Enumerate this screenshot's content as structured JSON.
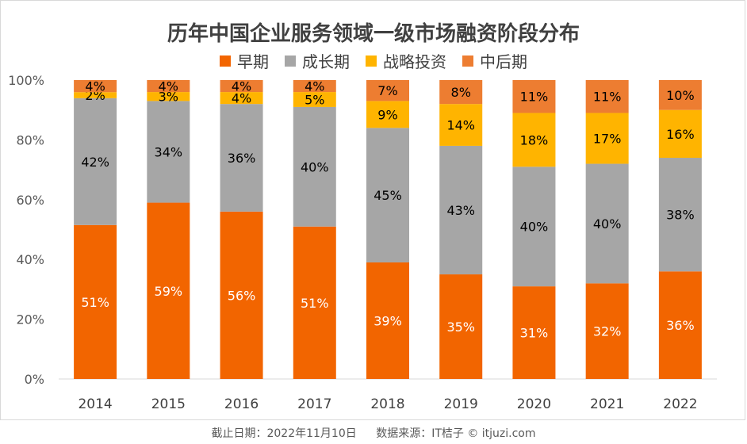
{
  "title": "历年中国企业服务领域一级市场融资阶段分布",
  "footer": {
    "cutoff": "截止日期：2022年11月10日",
    "source": "数据来源：IT桔子 © itjuzi.com"
  },
  "chart_data": {
    "type": "bar",
    "stacked": true,
    "percent": true,
    "title": "历年中国企业服务领域一级市场融资阶段分布",
    "categories": [
      "2014",
      "2015",
      "2016",
      "2017",
      "2018",
      "2019",
      "2020",
      "2021",
      "2022"
    ],
    "y_ticks": [
      "0%",
      "20%",
      "40%",
      "60%",
      "80%",
      "100%"
    ],
    "ylim": [
      0,
      100
    ],
    "legend_position": "top",
    "series": [
      {
        "name": "早期",
        "color": "#f26500",
        "label_color": "#ffffff",
        "values": [
          51,
          59,
          56,
          51,
          39,
          35,
          31,
          32,
          36
        ]
      },
      {
        "name": "成长期",
        "color": "#a6a6a6",
        "label_color": "#000000",
        "values": [
          42,
          34,
          36,
          40,
          45,
          43,
          40,
          40,
          38
        ]
      },
      {
        "name": "战略投资",
        "color": "#ffb400",
        "label_color": "#000000",
        "values": [
          2,
          3,
          4,
          5,
          9,
          14,
          18,
          17,
          16
        ]
      },
      {
        "name": "中后期",
        "color": "#ed7d31",
        "label_color": "#000000",
        "values": [
          4,
          4,
          4,
          4,
          7,
          8,
          11,
          11,
          10
        ]
      }
    ]
  }
}
